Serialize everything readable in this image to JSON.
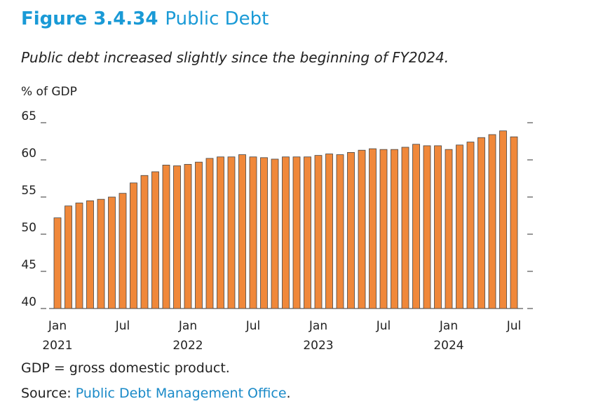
{
  "chart_data": {
    "type": "bar",
    "title_prefix": "Figure 3.4.34",
    "title": "Public Debt",
    "subtitle": "Public debt increased slightly since the beginning of FY2024.",
    "y_label": "% of GDP",
    "categories": [
      "Jan 2021",
      null,
      null,
      null,
      null,
      null,
      "Jul",
      null,
      null,
      null,
      null,
      null,
      "Jan 2022",
      null,
      null,
      null,
      null,
      null,
      "Jul",
      null,
      null,
      null,
      null,
      null,
      "Jan 2023",
      null,
      null,
      null,
      null,
      null,
      "Jul",
      null,
      null,
      null,
      null,
      null,
      "Jan 2024",
      null,
      null,
      null,
      null,
      null,
      "Jul"
    ],
    "values": [
      52.2,
      53.8,
      54.2,
      54.5,
      54.7,
      55.0,
      55.5,
      56.9,
      57.9,
      58.4,
      59.3,
      59.2,
      59.4,
      59.7,
      60.2,
      60.4,
      60.4,
      60.7,
      60.4,
      60.3,
      60.1,
      60.4,
      60.4,
      60.4,
      60.6,
      60.8,
      60.7,
      61.0,
      61.3,
      61.5,
      61.4,
      61.4,
      61.7,
      62.1,
      61.9,
      61.9,
      61.4,
      62.0,
      62.4,
      63.0,
      63.4,
      63.9,
      63.1
    ],
    "color": "#f0883a",
    "ylim": [
      40,
      65
    ],
    "yticks": [
      40,
      45,
      50,
      55,
      60,
      65
    ],
    "note": "GDP = gross domestic product.",
    "source": {
      "prefix": "Source:",
      "link": "Public Debt Management Office",
      "suffix": "."
    }
  }
}
